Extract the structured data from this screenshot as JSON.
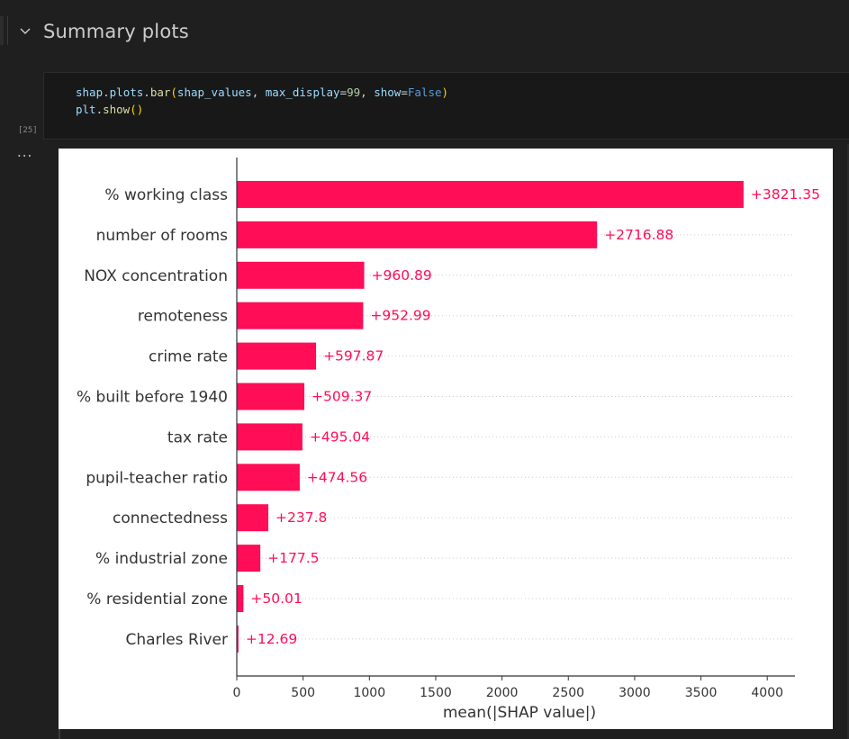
{
  "notebook": {
    "section_title": "Summary plots",
    "execution_count": "[25]",
    "output_ellipsis": "...",
    "code_lines": [
      [
        {
          "t": "shap",
          "c": "tk-var"
        },
        {
          "t": ".",
          "c": "tk-pun"
        },
        {
          "t": "plots",
          "c": "tk-var"
        },
        {
          "t": ".",
          "c": "tk-pun"
        },
        {
          "t": "bar",
          "c": "tk-fn"
        },
        {
          "t": "(",
          "c": "tk-br"
        },
        {
          "t": "shap_values",
          "c": "tk-var"
        },
        {
          "t": ", ",
          "c": "tk-pun"
        },
        {
          "t": "max_display",
          "c": "tk-var"
        },
        {
          "t": "=",
          "c": "tk-pun"
        },
        {
          "t": "99",
          "c": "tk-num"
        },
        {
          "t": ", ",
          "c": "tk-pun"
        },
        {
          "t": "show",
          "c": "tk-var"
        },
        {
          "t": "=",
          "c": "tk-pun"
        },
        {
          "t": "False",
          "c": "tk-kw"
        },
        {
          "t": ")",
          "c": "tk-br"
        }
      ],
      [
        {
          "t": "plt",
          "c": "tk-var"
        },
        {
          "t": ".",
          "c": "tk-pun"
        },
        {
          "t": "show",
          "c": "tk-fn"
        },
        {
          "t": "()",
          "c": "tk-br"
        }
      ]
    ]
  },
  "colors": {
    "bar": "#ff0d57",
    "label": "#333333",
    "axis": "#333333",
    "grid": "#cccccc"
  },
  "chart_data": {
    "type": "bar",
    "orientation": "horizontal",
    "categories": [
      "% working class",
      "number of rooms",
      "NOX concentration",
      "remoteness",
      "crime rate",
      "% built before 1940",
      "tax rate",
      "pupil-teacher ratio",
      "connectedness",
      "% industrial zone",
      "% residential zone",
      "Charles River"
    ],
    "values": [
      3821.35,
      2716.88,
      960.89,
      952.99,
      597.87,
      509.37,
      495.04,
      474.56,
      237.8,
      177.5,
      50.01,
      12.69
    ],
    "value_labels": [
      "+3821.35",
      "+2716.88",
      "+960.89",
      "+952.99",
      "+597.87",
      "+509.37",
      "+495.04",
      "+474.56",
      "+237.8",
      "+177.5",
      "+50.01",
      "+12.69"
    ],
    "xticks": [
      0,
      500,
      1000,
      1500,
      2000,
      2500,
      3000,
      3500,
      4000
    ],
    "xlabel": "mean(|SHAP value|)",
    "xlim": [
      0,
      4200
    ],
    "grid": "dotted row guides"
  }
}
